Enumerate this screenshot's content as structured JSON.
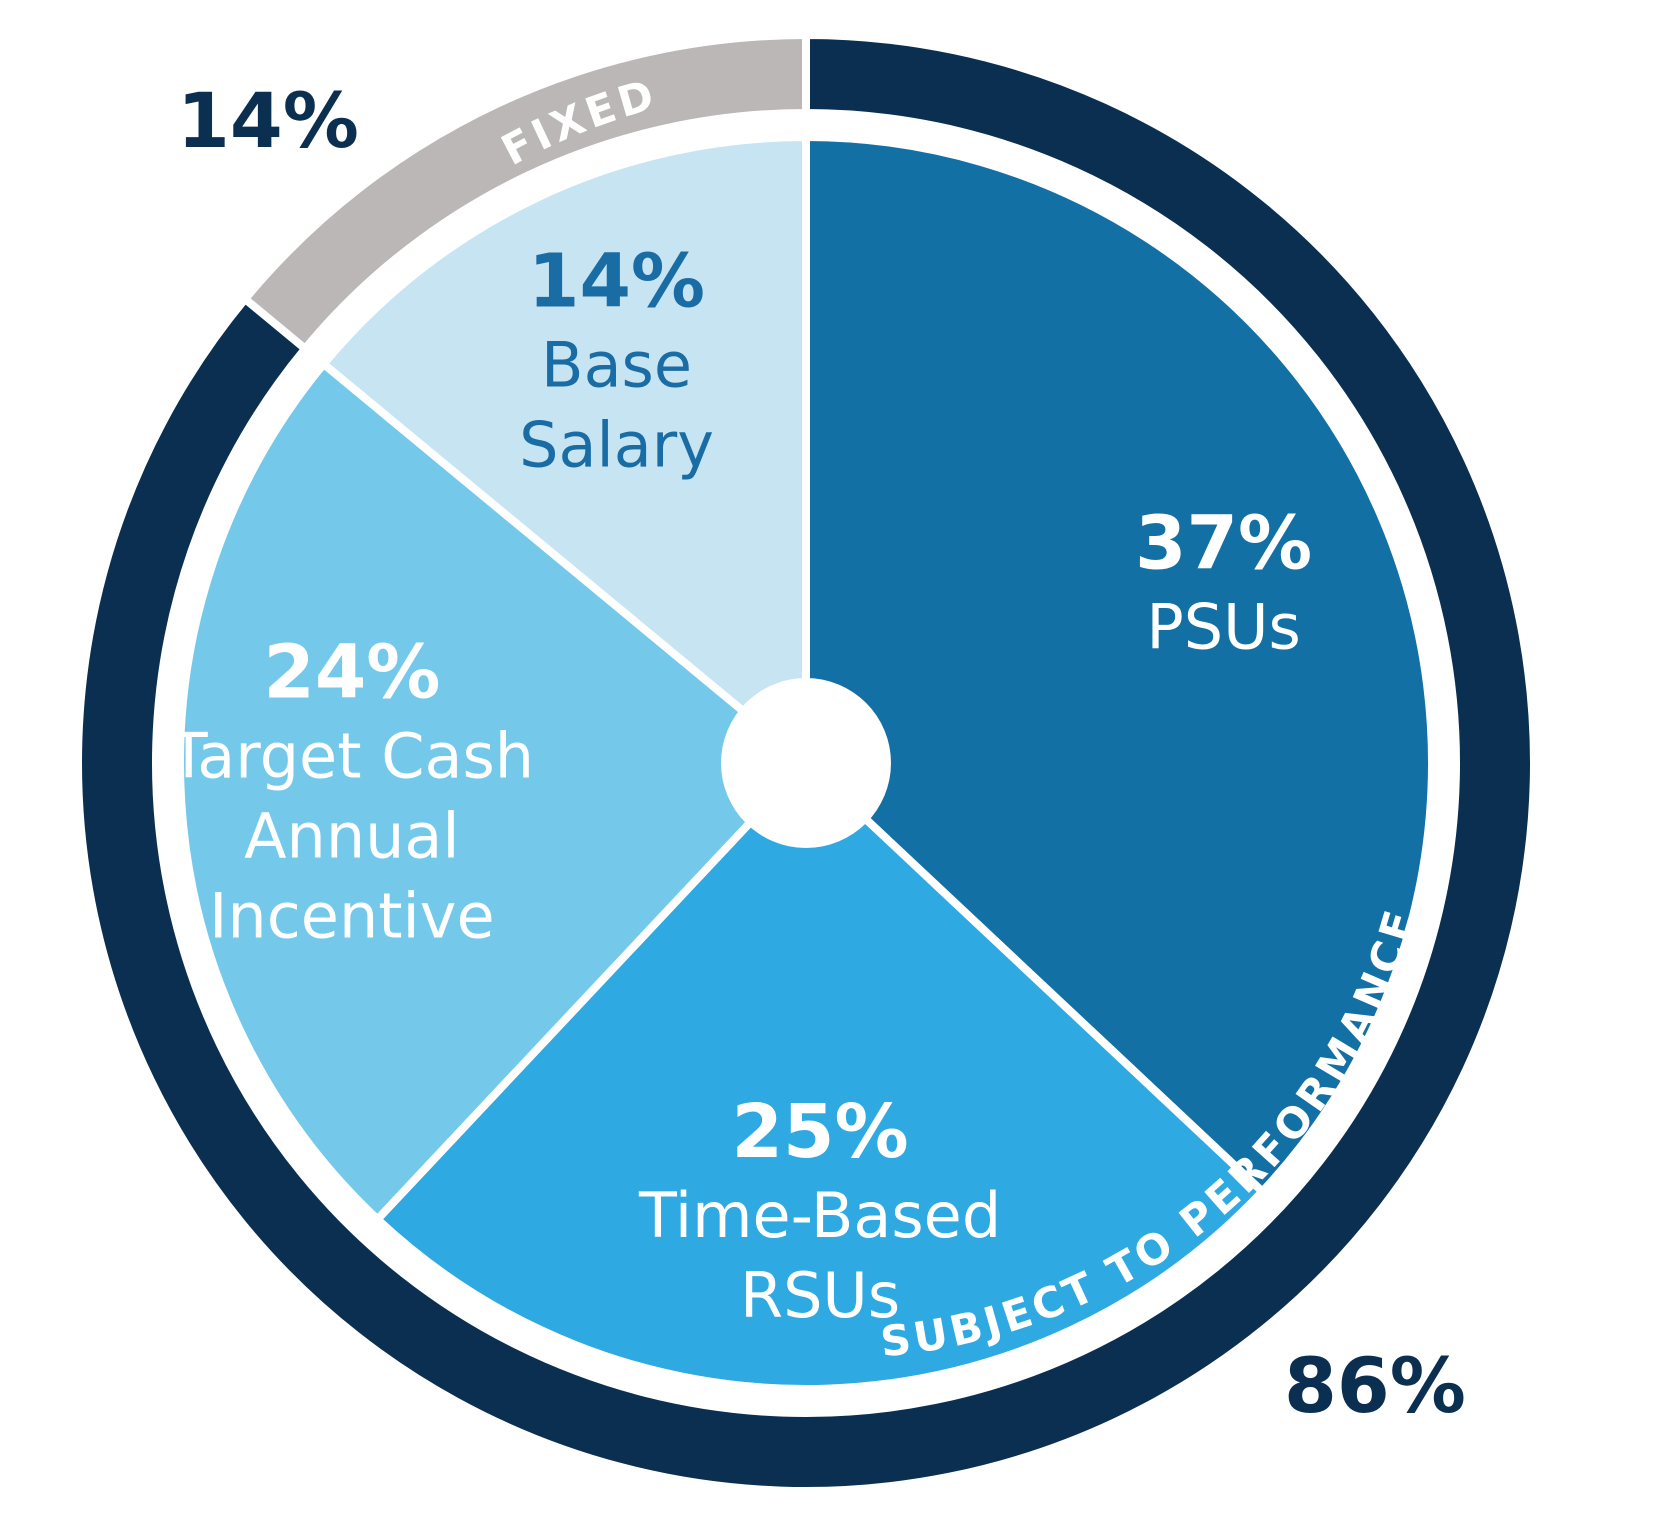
{
  "chart_data": {
    "type": "pie",
    "slices": [
      {
        "value": 37,
        "label": "37%",
        "lines": [
          "PSUs"
        ],
        "color": "#1370a5",
        "text_color": "#ffffff"
      },
      {
        "value": 25,
        "label": "25%",
        "lines": [
          "Time-Based",
          "RSUs"
        ],
        "color": "#2ea9e1",
        "text_color": "#ffffff"
      },
      {
        "value": 24,
        "label": "24%",
        "lines": [
          "Target Cash",
          "Annual",
          "Incentive"
        ],
        "color": "#74c9ea",
        "text_color": "#ffffff"
      },
      {
        "value": 14,
        "label": "14%",
        "lines": [
          "Base",
          "Salary"
        ],
        "color": "#c7e4f3",
        "text_color": "#1a6ca5"
      }
    ],
    "groups": [
      {
        "name": "FIXED",
        "value": 14,
        "label": "14%",
        "color": "#bab7b6"
      },
      {
        "name": "SUBJECT TO PERFORMANCE",
        "value": 86,
        "label": "86%",
        "color": "#0b2f50"
      }
    ]
  },
  "colors": {
    "outer_label": "#0b2f50",
    "divider": "#ffffff"
  }
}
